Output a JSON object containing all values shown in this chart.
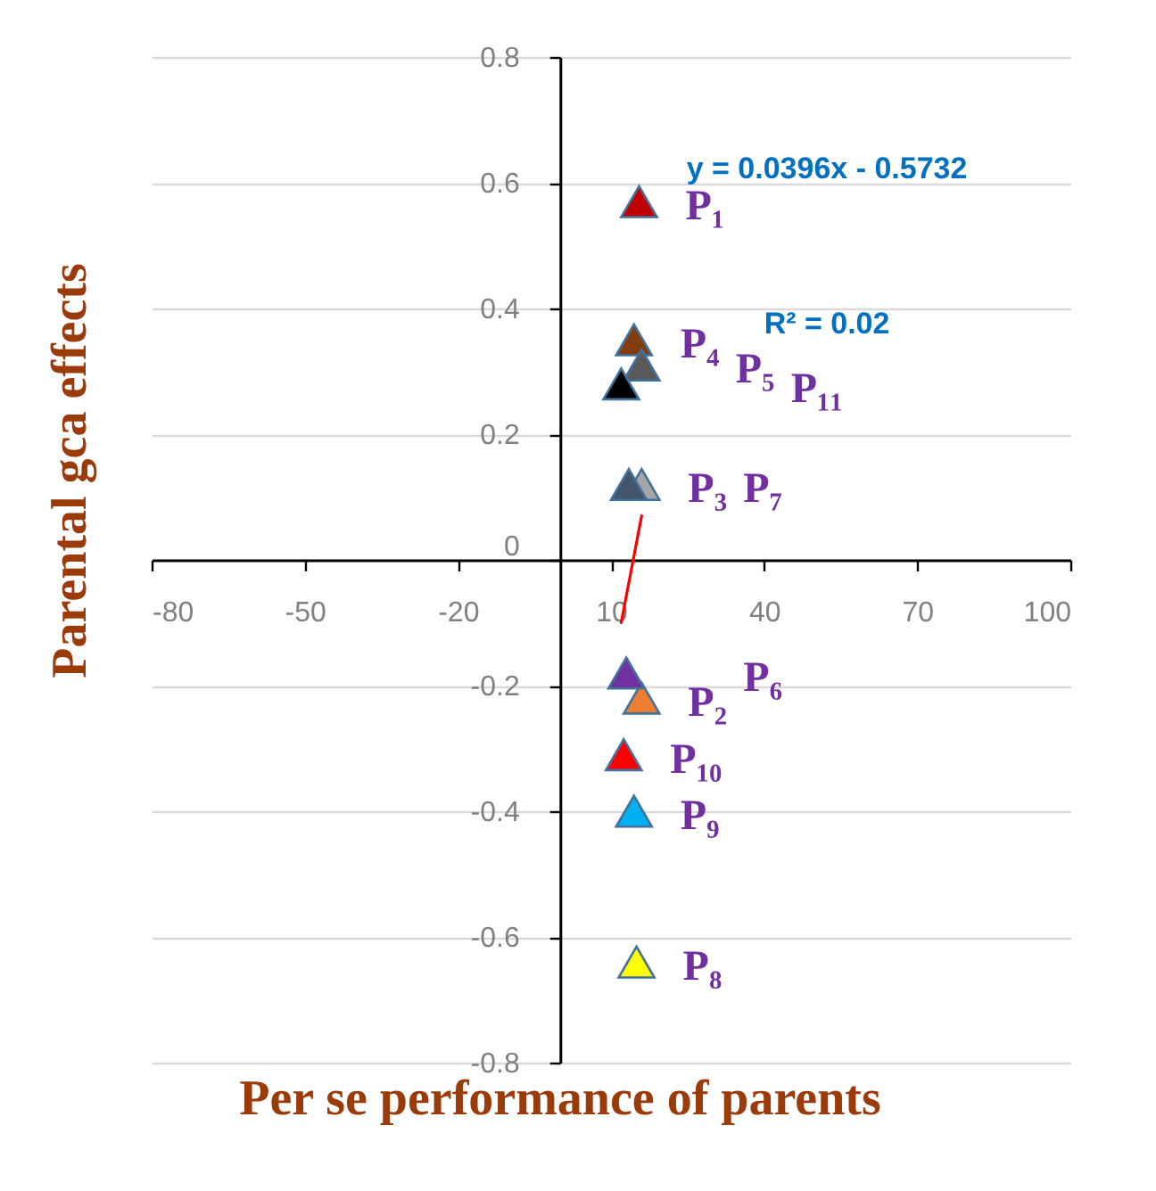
{
  "chart_data": {
    "type": "scatter",
    "xlabel": "Per se performance  of parents",
    "ylabel": "Parental gca effects",
    "xlim": [
      -80,
      100
    ],
    "xticks": [
      -80,
      -50,
      -20,
      10,
      40,
      70,
      100
    ],
    "ylim": [
      -0.8,
      0.8
    ],
    "yticks": [
      -0.8,
      -0.6,
      -0.4,
      -0.2,
      0,
      0.2,
      0.4,
      0.6,
      0.8
    ],
    "grid": "y",
    "legend": false,
    "marker": "triangle",
    "series": [
      {
        "name": "P₁",
        "color": "#c00000",
        "x": [
          15.5
        ],
        "values": [
          0.57
        ]
      },
      {
        "name": "P₂",
        "color": "#ed7d31",
        "x": [
          16
        ],
        "values": [
          -0.22
        ]
      },
      {
        "name": "P₃",
        "color": "#a5a5a5",
        "x": [
          16
        ],
        "values": [
          0.12
        ]
      },
      {
        "name": "P₄",
        "color": "#843c0c",
        "x": [
          14.5
        ],
        "values": [
          0.35
        ]
      },
      {
        "name": "P₅",
        "color": "#595959",
        "x": [
          16
        ],
        "values": [
          0.31
        ]
      },
      {
        "name": "P₆",
        "color": "#7030a0",
        "x": [
          13
        ],
        "values": [
          -0.18
        ]
      },
      {
        "name": "P₇",
        "color": "#44546a",
        "x": [
          13.5
        ],
        "values": [
          0.12
        ]
      },
      {
        "name": "P₈",
        "color": "#ffff00",
        "x": [
          15
        ],
        "values": [
          -0.64
        ]
      },
      {
        "name": "P₉",
        "color": "#00b0f0",
        "x": [
          14.5
        ],
        "values": [
          -0.4
        ]
      },
      {
        "name": "P₁₀",
        "color": "#ff0000",
        "x": [
          12.5
        ],
        "values": [
          -0.31
        ]
      },
      {
        "name": "P₁₁",
        "color": "#000000",
        "x": [
          12
        ],
        "values": [
          0.28
        ]
      },
      {
        "type": "line",
        "color": "#ff0000",
        "marker": "none",
        "x": [
          12,
          16
        ],
        "values": [
          -0.1,
          0.07
        ]
      }
    ],
    "annotations": [
      "y = 0.0396x - 0.5732",
      "R² = 0.02"
    ]
  }
}
